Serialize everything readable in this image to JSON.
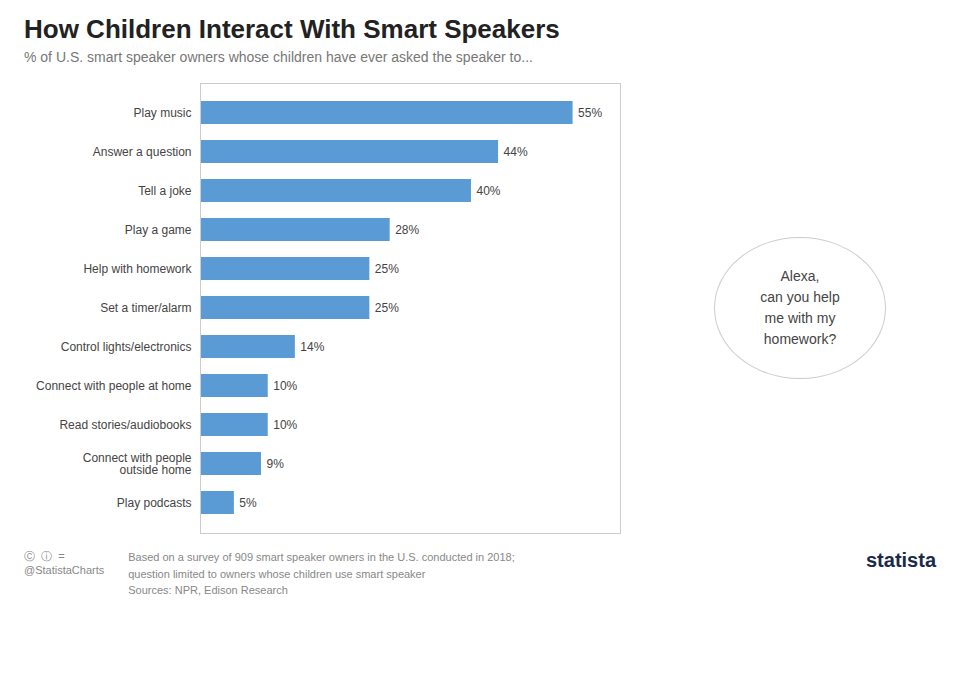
{
  "chart_data": {
    "type": "bar",
    "orientation": "horizontal",
    "title": "How Children Interact With Smart Speakers",
    "subtitle": "% of U.S. smart speaker owners whose children have ever asked the speaker to...",
    "categories": [
      "Play music",
      "Answer a question",
      "Tell a joke",
      "Play a game",
      "Help with homework",
      "Set a timer/alarm",
      "Control lights/electronics",
      "Connect with people at home",
      "Read stories/audiobooks",
      "Connect with people\noutside home",
      "Play podcasts"
    ],
    "values": [
      55,
      44,
      40,
      28,
      25,
      25,
      14,
      10,
      10,
      9,
      5
    ],
    "value_labels": [
      "55%",
      "44%",
      "40%",
      "28%",
      "25%",
      "25%",
      "14%",
      "10%",
      "10%",
      "9%",
      "5%"
    ],
    "data_labels": true,
    "color": "#5B9BD5",
    "xlim": [
      0,
      62
    ],
    "tick_labels": "y",
    "grid": false,
    "annotations": [
      "Alexa,\ncan you help\nme with my\nhomework?"
    ],
    "caption": [
      "Based on a survey of 909 smart speaker owners in the U.S. conducted in 2018;",
      "question limited to owners whose children use smart speaker",
      "Sources: NPR, Edison Research"
    ],
    "credits": [
      "Ⓒ  ⓘ  =",
      "@StatistaCharts",
      "statista"
    ]
  }
}
